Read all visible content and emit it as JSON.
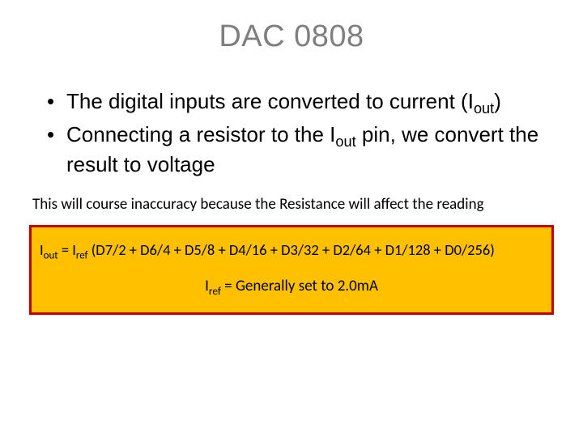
{
  "title": "DAC 0808",
  "bullet1_a": "The digital inputs are converted to current (I",
  "bullet1_sub": "out",
  "bullet1_b": ")",
  "bullet2_a": "Connecting a resistor to the I",
  "bullet2_sub": "out",
  "bullet2_b": " pin, we convert the result to voltage",
  "note": "This will course inaccuracy because the Resistance will affect the reading",
  "formula": {
    "p1": "I",
    "s1": "out",
    "p2": " = I",
    "s2": "ref",
    "p3": " (D7/2 + D6/4 + D5/8 + D4/16 + D3/32 + D2/64 + D1/128 + D0/256)"
  },
  "iref": {
    "p1": "I",
    "s1": "ref",
    "p2": " = Generally set to 2.0mA"
  },
  "colors": {
    "title": "#7f7f7f",
    "box_border": "#c00000",
    "box_fill": "#ffc000",
    "text": "#000000",
    "background": "#ffffff"
  }
}
